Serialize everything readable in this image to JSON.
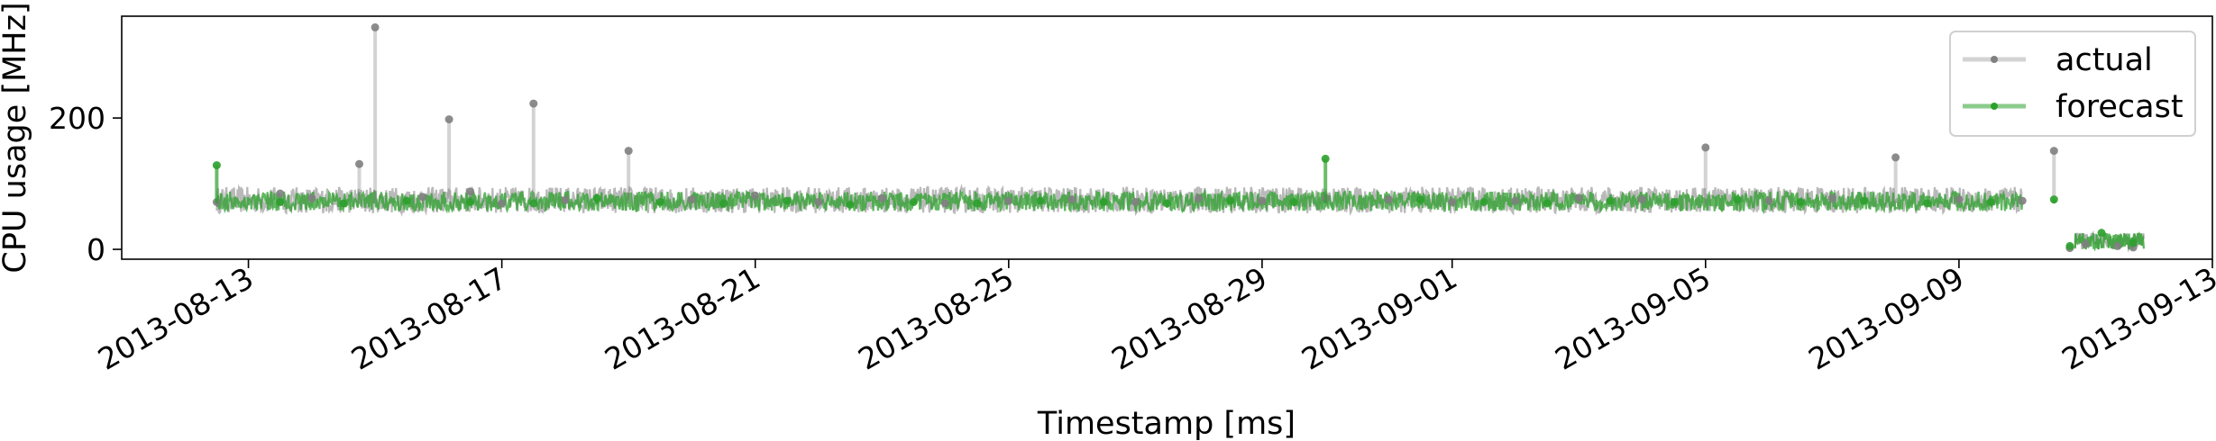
{
  "chart_data": {
    "type": "line",
    "xlabel": "Timestamp [ms]",
    "ylabel": "CPU usage [MHz]",
    "x_range": [
      "2013-08-11",
      "2013-09-13"
    ],
    "ylim": [
      -15,
      355
    ],
    "x_ticks": [
      "2013-08-13",
      "2013-08-17",
      "2013-08-21",
      "2013-08-25",
      "2013-08-29",
      "2013-09-01",
      "2013-09-05",
      "2013-09-09",
      "2013-09-13"
    ],
    "y_ticks": [
      0,
      200
    ],
    "grid": false,
    "legend": {
      "placement": "top-right",
      "entries": [
        "actual",
        "forecast"
      ]
    },
    "series": [
      {
        "name": "actual",
        "color": "#808080",
        "x": [
          "2013-08-12T12:00",
          "2013-08-13T12:00",
          "2013-08-14T00:00",
          "2013-08-14T18:00",
          "2013-08-15T00:00",
          "2013-08-15T18:00",
          "2013-08-16T04:00",
          "2013-08-16T12:00",
          "2013-08-17T00:00",
          "2013-08-17T12:00",
          "2013-08-18T00:00",
          "2013-08-19T00:00",
          "2013-08-20T00:00",
          "2013-08-21T00:00",
          "2013-08-22T00:00",
          "2013-08-23T00:00",
          "2013-08-24T00:00",
          "2013-08-25T00:00",
          "2013-08-26T00:00",
          "2013-08-27T00:00",
          "2013-08-28T00:00",
          "2013-08-29T00:00",
          "2013-08-30T00:00",
          "2013-08-31T00:00",
          "2013-09-01T00:00",
          "2013-09-02T00:00",
          "2013-09-03T00:00",
          "2013-09-04T00:00",
          "2013-09-05T00:00",
          "2013-09-06T00:00",
          "2013-09-07T00:00",
          "2013-09-08T00:00",
          "2013-09-09T00:00",
          "2013-09-10T00:00",
          "2013-09-10T12:00",
          "2013-09-10T18:00",
          "2013-09-11T00:00",
          "2013-09-11T12:00",
          "2013-09-11T18:00"
        ],
        "values": [
          72,
          85,
          78,
          130,
          338,
          80,
          198,
          88,
          70,
          222,
          75,
          150,
          76,
          82,
          72,
          78,
          70,
          74,
          76,
          72,
          78,
          74,
          78,
          76,
          72,
          74,
          78,
          76,
          155,
          74,
          78,
          140,
          76,
          74,
          150,
          2,
          8,
          5,
          3
        ]
      },
      {
        "name": "forecast",
        "color": "#2ca02c",
        "x": [
          "2013-08-12T12:00",
          "2013-08-13T12:00",
          "2013-08-14T12:00",
          "2013-08-15T12:00",
          "2013-08-16T12:00",
          "2013-08-17T12:00",
          "2013-08-18T12:00",
          "2013-08-19T12:00",
          "2013-08-20T12:00",
          "2013-08-21T12:00",
          "2013-08-22T12:00",
          "2013-08-23T12:00",
          "2013-08-24T12:00",
          "2013-08-25T12:00",
          "2013-08-26T12:00",
          "2013-08-27T12:00",
          "2013-08-28T12:00",
          "2013-08-29T12:00",
          "2013-08-30T00:00",
          "2013-08-31T12:00",
          "2013-09-01T12:00",
          "2013-09-02T12:00",
          "2013-09-03T12:00",
          "2013-09-04T12:00",
          "2013-09-05T12:00",
          "2013-09-06T12:00",
          "2013-09-07T12:00",
          "2013-09-08T12:00",
          "2013-09-09T12:00",
          "2013-09-10T12:00",
          "2013-09-10T18:00",
          "2013-09-11T06:00",
          "2013-09-11T18:00"
        ],
        "values": [
          128,
          72,
          70,
          74,
          72,
          70,
          78,
          72,
          70,
          74,
          68,
          72,
          70,
          74,
          72,
          70,
          74,
          72,
          138,
          76,
          72,
          70,
          74,
          72,
          76,
          72,
          74,
          70,
          72,
          76,
          5,
          25,
          10
        ]
      }
    ]
  }
}
